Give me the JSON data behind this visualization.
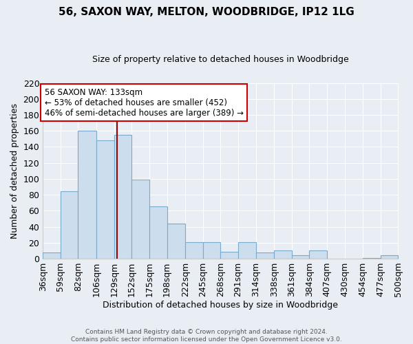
{
  "title": "56, SAXON WAY, MELTON, WOODBRIDGE, IP12 1LG",
  "subtitle": "Size of property relative to detached houses in Woodbridge",
  "xlabel": "Distribution of detached houses by size in Woodbridge",
  "ylabel": "Number of detached properties",
  "footer_line1": "Contains HM Land Registry data © Crown copyright and database right 2024.",
  "footer_line2": "Contains public sector information licensed under the Open Government Licence v3.0.",
  "bin_edges": [
    36,
    59,
    82,
    106,
    129,
    152,
    175,
    198,
    222,
    245,
    268,
    291,
    314,
    338,
    361,
    384,
    407,
    430,
    454,
    477,
    500
  ],
  "bin_labels": [
    "36sqm",
    "59sqm",
    "82sqm",
    "106sqm",
    "129sqm",
    "152sqm",
    "175sqm",
    "198sqm",
    "222sqm",
    "245sqm",
    "268sqm",
    "291sqm",
    "314sqm",
    "338sqm",
    "361sqm",
    "384sqm",
    "407sqm",
    "430sqm",
    "454sqm",
    "477sqm",
    "500sqm"
  ],
  "counts": [
    8,
    84,
    160,
    148,
    155,
    99,
    65,
    44,
    21,
    21,
    9,
    21,
    8,
    10,
    4,
    10,
    0,
    0,
    1,
    4
  ],
  "bar_color": "#ccdded",
  "bar_edge_color": "#7aaaca",
  "property_value": 133,
  "red_line_color": "#990000",
  "annotation_text_line1": "56 SAXON WAY: 133sqm",
  "annotation_text_line2": "← 53% of detached houses are smaller (452)",
  "annotation_text_line3": "46% of semi-detached houses are larger (389) →",
  "annotation_box_edge_color": "#cc0000",
  "annotation_box_face_color": "#ffffff",
  "ylim": [
    0,
    220
  ],
  "yticks": [
    0,
    20,
    40,
    60,
    80,
    100,
    120,
    140,
    160,
    180,
    200,
    220
  ],
  "bg_color": "#e8eef4",
  "grid_color": "#ffffff",
  "title_fontsize": 11,
  "subtitle_fontsize": 9
}
